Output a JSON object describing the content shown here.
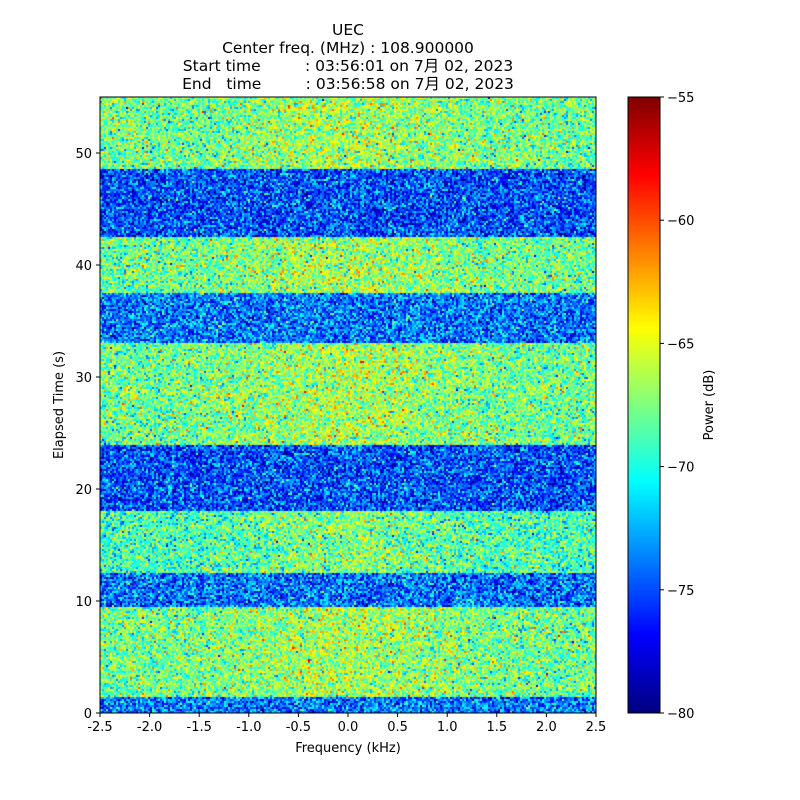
{
  "chart_data": {
    "type": "heatmap",
    "title_lines": [
      "UEC",
      "Center freq. (MHz) : 108.900000",
      "Start time         : 03:56:01 on 7月 02, 2023",
      "End   time         : 03:56:58 on 7月 02, 2023"
    ],
    "xlabel": "Frequency (kHz)",
    "ylabel": "Elapsed Time (s)",
    "xlim": [
      -2.5,
      2.5
    ],
    "ylim": [
      0,
      55
    ],
    "xticks": [
      -2.5,
      -2.0,
      -1.5,
      -1.0,
      -0.5,
      0.0,
      0.5,
      1.0,
      1.5,
      2.0,
      2.5
    ],
    "xtick_labels": [
      "-2.5",
      "-2.0",
      "-1.5",
      "-1.0",
      "-0.5",
      "0.0",
      "0.5",
      "1.0",
      "1.5",
      "2.0",
      "2.5"
    ],
    "yticks": [
      0,
      10,
      20,
      30,
      40,
      50
    ],
    "ytick_labels": [
      "0",
      "10",
      "20",
      "30",
      "40",
      "50"
    ],
    "colormap": "jet",
    "colorbar": {
      "label": "Power (dB)",
      "range": [
        -80,
        -55
      ],
      "ticks": [
        -80,
        -75,
        -70,
        -65,
        -60,
        -55
      ],
      "tick_labels": [
        "−80",
        "−75",
        "−70",
        "−65",
        "−60",
        "−55"
      ]
    },
    "time_bands": [
      {
        "t_start": 0.0,
        "t_end": 1.5,
        "mean_power_db": -74
      },
      {
        "t_start": 1.5,
        "t_end": 9.5,
        "mean_power_db": -68
      },
      {
        "t_start": 9.5,
        "t_end": 12.5,
        "mean_power_db": -74
      },
      {
        "t_start": 12.5,
        "t_end": 18.0,
        "mean_power_db": -69
      },
      {
        "t_start": 18.0,
        "t_end": 24.0,
        "mean_power_db": -75
      },
      {
        "t_start": 24.0,
        "t_end": 33.0,
        "mean_power_db": -68
      },
      {
        "t_start": 33.0,
        "t_end": 37.5,
        "mean_power_db": -74
      },
      {
        "t_start": 37.5,
        "t_end": 42.5,
        "mean_power_db": -68
      },
      {
        "t_start": 42.5,
        "t_end": 48.5,
        "mean_power_db": -75
      },
      {
        "t_start": 48.5,
        "t_end": 55.0,
        "mean_power_db": -68
      }
    ],
    "center_enhancement_db": 1.5
  }
}
